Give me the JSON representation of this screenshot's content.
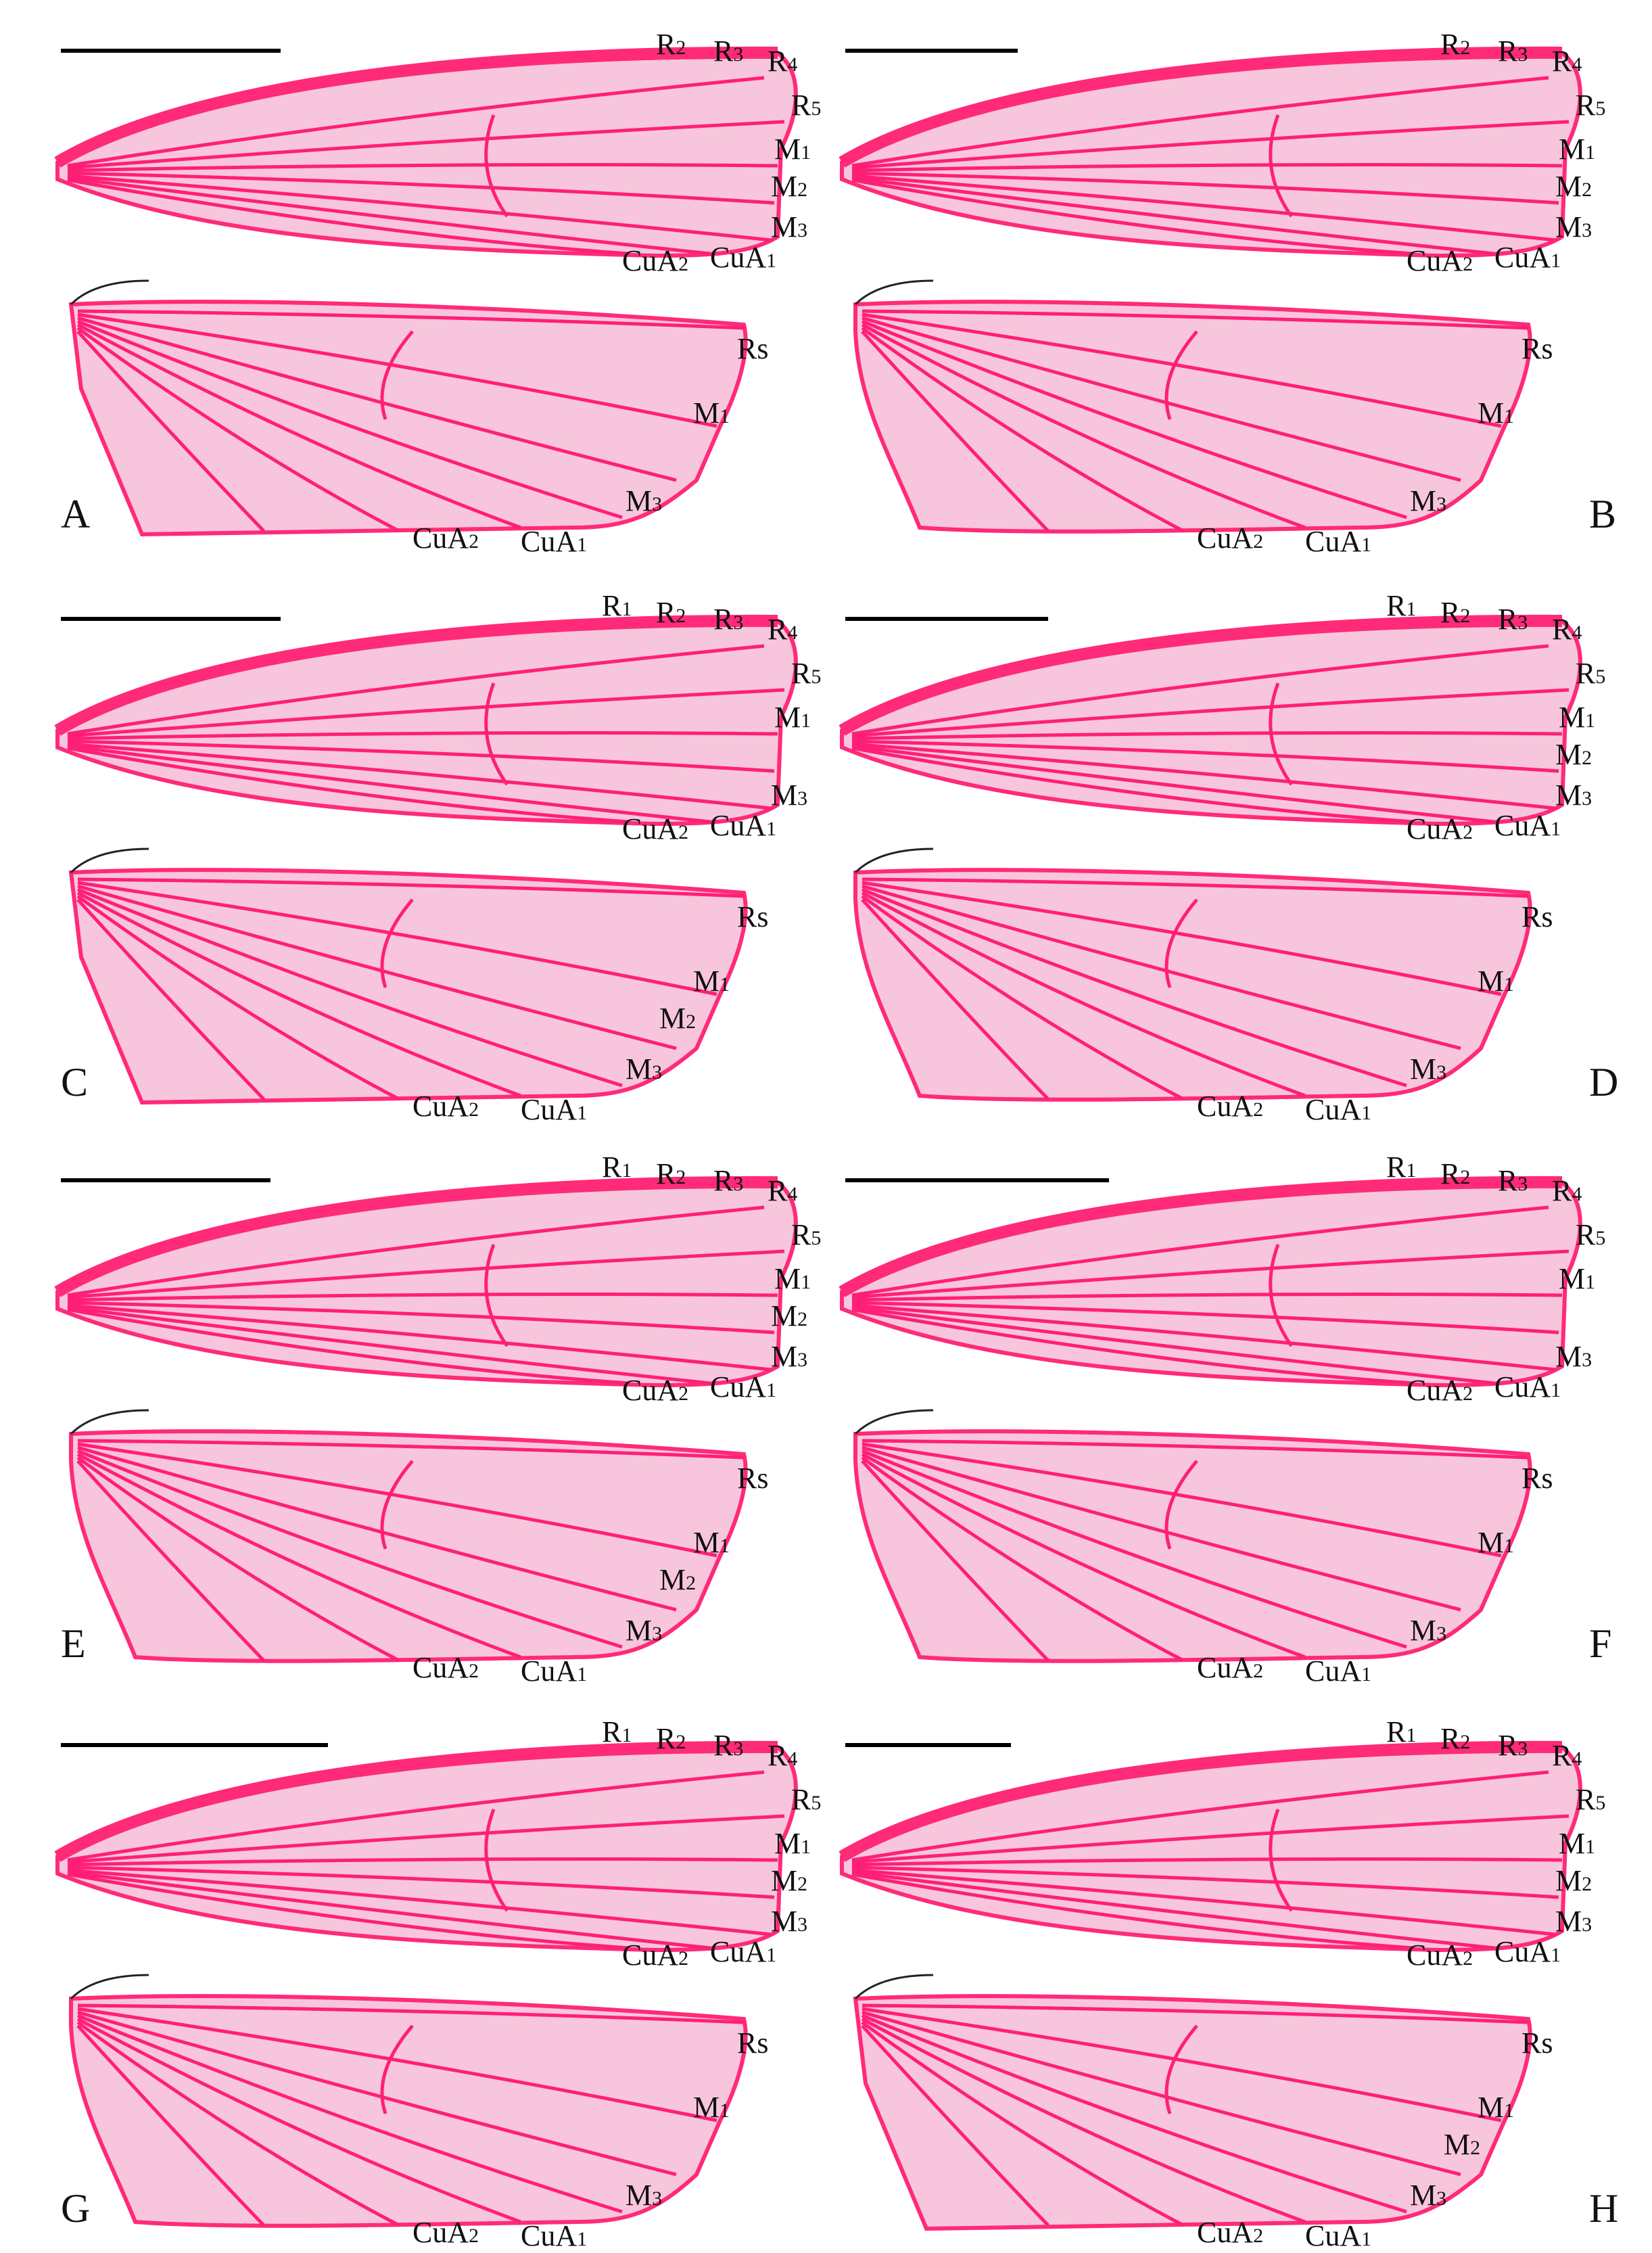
{
  "colors": {
    "membrane": "#f7c6dc",
    "membrane_pale": "#f3eef1",
    "vein": "#ff1f77",
    "vein_dark": "#d10f5a",
    "costa": "#ff2a78",
    "scale_bar": "#000000",
    "text": "#111111"
  },
  "panels": [
    {
      "letter": "A",
      "forewing_labels": [
        {
          "main": "R",
          "sub": "2"
        },
        {
          "main": "R",
          "sub": "3"
        },
        {
          "main": "R",
          "sub": "4"
        },
        {
          "main": "R",
          "sub": "5"
        },
        {
          "main": "M",
          "sub": "1"
        },
        {
          "main": "M",
          "sub": "2"
        },
        {
          "main": "M",
          "sub": "3"
        },
        {
          "main": "CuA",
          "sub": "2"
        },
        {
          "main": "CuA",
          "sub": "1"
        }
      ],
      "hindwing_labels": [
        {
          "main": "Rs",
          "sub": ""
        },
        {
          "main": "M",
          "sub": "1"
        },
        {
          "main": "M",
          "sub": "3"
        },
        {
          "main": "CuA",
          "sub": "2"
        },
        {
          "main": "CuA",
          "sub": "1"
        }
      ]
    },
    {
      "letter": "B",
      "forewing_labels": [
        {
          "main": "R",
          "sub": "2"
        },
        {
          "main": "R",
          "sub": "3"
        },
        {
          "main": "R",
          "sub": "4"
        },
        {
          "main": "R",
          "sub": "5"
        },
        {
          "main": "M",
          "sub": "1"
        },
        {
          "main": "M",
          "sub": "2"
        },
        {
          "main": "M",
          "sub": "3"
        },
        {
          "main": "CuA",
          "sub": "2"
        },
        {
          "main": "CuA",
          "sub": "1"
        }
      ],
      "hindwing_labels": [
        {
          "main": "Rs",
          "sub": ""
        },
        {
          "main": "M",
          "sub": "1"
        },
        {
          "main": "M",
          "sub": "3"
        },
        {
          "main": "CuA",
          "sub": "2"
        },
        {
          "main": "CuA",
          "sub": "1"
        }
      ]
    },
    {
      "letter": "C",
      "forewing_labels": [
        {
          "main": "R",
          "sub": "1"
        },
        {
          "main": "R",
          "sub": "2"
        },
        {
          "main": "R",
          "sub": "3"
        },
        {
          "main": "R",
          "sub": "4"
        },
        {
          "main": "R",
          "sub": "5"
        },
        {
          "main": "M",
          "sub": "1"
        },
        {
          "main": "M",
          "sub": "3"
        },
        {
          "main": "CuA",
          "sub": "2"
        },
        {
          "main": "CuA",
          "sub": "1"
        }
      ],
      "hindwing_labels": [
        {
          "main": "Rs",
          "sub": ""
        },
        {
          "main": "M",
          "sub": "1"
        },
        {
          "main": "M",
          "sub": "2"
        },
        {
          "main": "M",
          "sub": "3"
        },
        {
          "main": "CuA",
          "sub": "2"
        },
        {
          "main": "CuA",
          "sub": "1"
        }
      ]
    },
    {
      "letter": "D",
      "forewing_labels": [
        {
          "main": "R",
          "sub": "1"
        },
        {
          "main": "R",
          "sub": "2"
        },
        {
          "main": "R",
          "sub": "3"
        },
        {
          "main": "R",
          "sub": "4"
        },
        {
          "main": "R",
          "sub": "5"
        },
        {
          "main": "M",
          "sub": "1"
        },
        {
          "main": "M",
          "sub": "2"
        },
        {
          "main": "M",
          "sub": "3"
        },
        {
          "main": "CuA",
          "sub": "2"
        },
        {
          "main": "CuA",
          "sub": "1"
        }
      ],
      "hindwing_labels": [
        {
          "main": "Rs",
          "sub": ""
        },
        {
          "main": "M",
          "sub": "1"
        },
        {
          "main": "M",
          "sub": "3"
        },
        {
          "main": "CuA",
          "sub": "2"
        },
        {
          "main": "CuA",
          "sub": "1"
        }
      ]
    },
    {
      "letter": "E",
      "forewing_labels": [
        {
          "main": "R",
          "sub": "1"
        },
        {
          "main": "R",
          "sub": "2"
        },
        {
          "main": "R",
          "sub": "3"
        },
        {
          "main": "R",
          "sub": "4"
        },
        {
          "main": "R",
          "sub": "5"
        },
        {
          "main": "M",
          "sub": "1"
        },
        {
          "main": "M",
          "sub": "2"
        },
        {
          "main": "M",
          "sub": "3"
        },
        {
          "main": "CuA",
          "sub": "2"
        },
        {
          "main": "CuA",
          "sub": "1"
        }
      ],
      "hindwing_labels": [
        {
          "main": "Rs",
          "sub": ""
        },
        {
          "main": "M",
          "sub": "1"
        },
        {
          "main": "M",
          "sub": "2"
        },
        {
          "main": "M",
          "sub": "3"
        },
        {
          "main": "CuA",
          "sub": "2"
        },
        {
          "main": "CuA",
          "sub": "1"
        }
      ]
    },
    {
      "letter": "F",
      "forewing_labels": [
        {
          "main": "R",
          "sub": "1"
        },
        {
          "main": "R",
          "sub": "2"
        },
        {
          "main": "R",
          "sub": "3"
        },
        {
          "main": "R",
          "sub": "4"
        },
        {
          "main": "R",
          "sub": "5"
        },
        {
          "main": "M",
          "sub": "1"
        },
        {
          "main": "M",
          "sub": "3"
        },
        {
          "main": "CuA",
          "sub": "1"
        },
        {
          "main": "CuA",
          "sub": "2"
        }
      ],
      "hindwing_labels": [
        {
          "main": "Rs",
          "sub": ""
        },
        {
          "main": "M",
          "sub": "1"
        },
        {
          "main": "M",
          "sub": "3"
        },
        {
          "main": "CuA",
          "sub": "2"
        },
        {
          "main": "CuA",
          "sub": "1"
        }
      ]
    },
    {
      "letter": "G",
      "forewing_labels": [
        {
          "main": "R",
          "sub": "1"
        },
        {
          "main": "R",
          "sub": "2"
        },
        {
          "main": "R",
          "sub": "3"
        },
        {
          "main": "R",
          "sub": "4"
        },
        {
          "main": "R",
          "sub": "5"
        },
        {
          "main": "M",
          "sub": "1"
        },
        {
          "main": "M",
          "sub": "2"
        },
        {
          "main": "M",
          "sub": "3"
        },
        {
          "main": "CuA",
          "sub": "2"
        },
        {
          "main": "CuA",
          "sub": "1"
        }
      ],
      "hindwing_labels": [
        {
          "main": "Rs",
          "sub": ""
        },
        {
          "main": "M",
          "sub": "1"
        },
        {
          "main": "M",
          "sub": "3"
        },
        {
          "main": "CuA",
          "sub": "2"
        },
        {
          "main": "CuA",
          "sub": "1"
        }
      ]
    },
    {
      "letter": "H",
      "forewing_labels": [
        {
          "main": "R",
          "sub": "1"
        },
        {
          "main": "R",
          "sub": "2"
        },
        {
          "main": "R",
          "sub": "3"
        },
        {
          "main": "R",
          "sub": "4"
        },
        {
          "main": "R",
          "sub": "5"
        },
        {
          "main": "M",
          "sub": "1"
        },
        {
          "main": "M",
          "sub": "2"
        },
        {
          "main": "M",
          "sub": "3"
        },
        {
          "main": "CuA",
          "sub": "2"
        },
        {
          "main": "CuA",
          "sub": "1"
        }
      ],
      "hindwing_labels": [
        {
          "main": "Rs",
          "sub": ""
        },
        {
          "main": "M",
          "sub": "1"
        },
        {
          "main": "M",
          "sub": "2"
        },
        {
          "main": "M",
          "sub": "3"
        },
        {
          "main": "CuA",
          "sub": "2"
        },
        {
          "main": "CuA",
          "sub": "1"
        }
      ]
    }
  ]
}
